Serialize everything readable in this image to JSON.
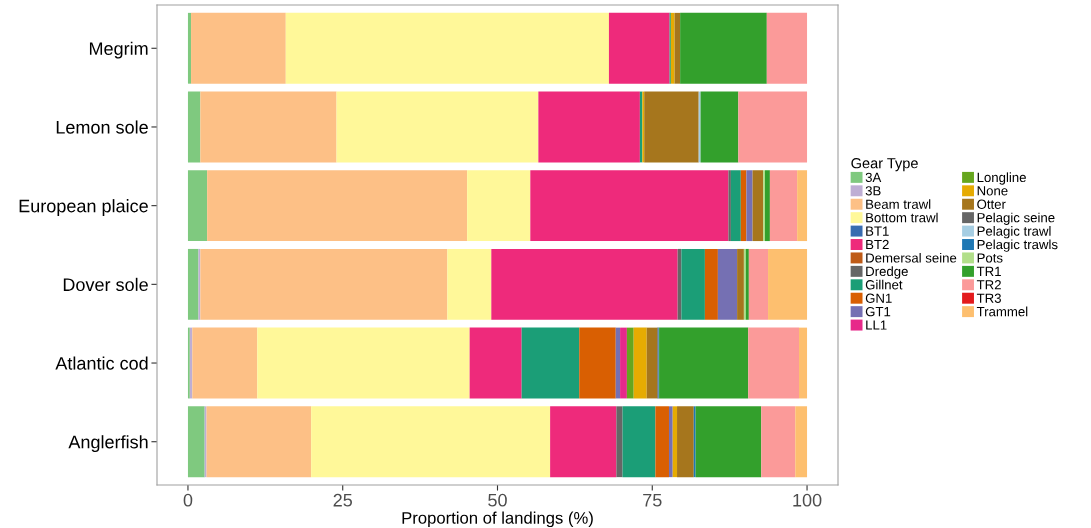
{
  "chart_data": {
    "type": "bar",
    "orientation": "horizontal",
    "stacked": true,
    "xlabel": "Proportion of landings (%)",
    "legend_title": "Gear Type",
    "legend": "right",
    "grid": false,
    "categories": [
      "Megrim",
      "Lemon sole",
      "European plaice",
      "Dover sole",
      "Atlantic cod",
      "Anglerfish"
    ],
    "xlim": [
      -5,
      105
    ],
    "xticks": [
      0,
      25,
      50,
      75,
      100
    ],
    "series": [
      {
        "name": "3A",
        "color": "#7fc97f",
        "values": [
          0.5,
          2.0,
          3.1,
          1.7,
          0.3,
          2.7
        ]
      },
      {
        "name": "3B",
        "color": "#beaed4",
        "values": [
          0,
          0,
          0,
          0.3,
          0.4,
          0.3
        ]
      },
      {
        "name": "Beam trawl",
        "color": "#fdc086",
        "values": [
          15.3,
          22.0,
          42.0,
          39.9,
          10.5,
          16.9
        ]
      },
      {
        "name": "Bottom trawl",
        "color": "#fff899",
        "values": [
          52.2,
          32.6,
          10.2,
          7.1,
          34.3,
          38.6
        ]
      },
      {
        "name": "BT1",
        "color": "#386cb0",
        "values": [
          0,
          0,
          0,
          0,
          0,
          0
        ]
      },
      {
        "name": "BT2",
        "color": "#ee2a7b",
        "values": [
          9.8,
          16.4,
          32.0,
          30.1,
          8.4,
          10.7
        ]
      },
      {
        "name": "Demersal seine",
        "color": "#bf5b17",
        "values": [
          0,
          0,
          0,
          0,
          0,
          0
        ]
      },
      {
        "name": "Dredge",
        "color": "#666666",
        "values": [
          0,
          0,
          0.4,
          0.6,
          0,
          1.0
        ]
      },
      {
        "name": "Gillnet",
        "color": "#1b9e77",
        "values": [
          0.2,
          0.4,
          1.6,
          3.8,
          9.3,
          5.3
        ]
      },
      {
        "name": "GN1",
        "color": "#d95f02",
        "values": [
          0,
          0,
          0.9,
          2.1,
          5.9,
          2.2
        ]
      },
      {
        "name": "GT1",
        "color": "#7570b3",
        "values": [
          0,
          0,
          1.0,
          3.1,
          0.7,
          0.6
        ]
      },
      {
        "name": "LL1",
        "color": "#e7298a",
        "values": [
          0,
          0,
          0,
          0,
          1.1,
          0
        ]
      },
      {
        "name": "Longline",
        "color": "#66a61e",
        "values": [
          0,
          0,
          0,
          0,
          1.1,
          0
        ]
      },
      {
        "name": "None",
        "color": "#e6ab02",
        "values": [
          0.6,
          0.3,
          0,
          0,
          2.1,
          0.7
        ]
      },
      {
        "name": "Otter",
        "color": "#a6761d",
        "values": [
          0.9,
          8.8,
          1.7,
          1.1,
          1.7,
          2.7
        ]
      },
      {
        "name": "Pelagic seine",
        "color": "#666666",
        "values": [
          0,
          0,
          0,
          0,
          0.2,
          0
        ]
      },
      {
        "name": "Pelagic trawl",
        "color": "#a6cee3",
        "values": [
          0,
          0.3,
          0,
          0,
          0,
          0
        ]
      },
      {
        "name": "Pelagic trawls",
        "color": "#1f78b4",
        "values": [
          0,
          0,
          0,
          0,
          0.1,
          0.3
        ]
      },
      {
        "name": "Pots",
        "color": "#b2df8a",
        "values": [
          0,
          0,
          0.3,
          0.3,
          0,
          0
        ]
      },
      {
        "name": "TR1",
        "color": "#33a02c",
        "values": [
          14.0,
          6.1,
          0.8,
          0.5,
          14.4,
          10.6
        ]
      },
      {
        "name": "TR2",
        "color": "#fb9a99",
        "values": [
          6.5,
          11.1,
          4.4,
          3.1,
          8.2,
          5.5
        ]
      },
      {
        "name": "TR3",
        "color": "#e31a1c",
        "values": [
          0,
          0,
          0,
          0,
          0,
          0
        ]
      },
      {
        "name": "Trammel",
        "color": "#fdbf6f",
        "values": [
          0,
          0,
          1.6,
          6.3,
          1.3,
          1.9
        ]
      }
    ]
  }
}
